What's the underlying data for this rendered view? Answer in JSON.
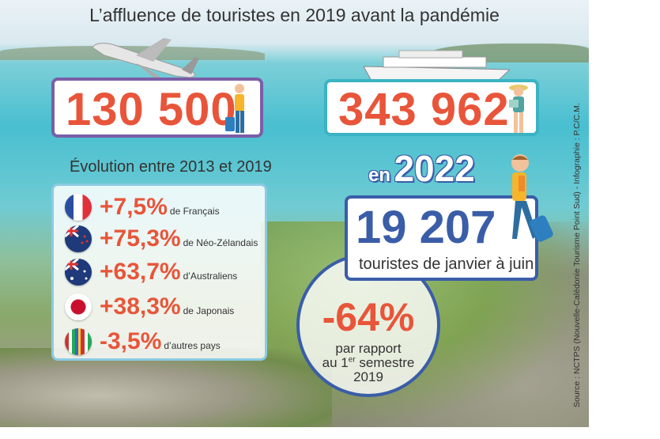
{
  "title": "L’affluence de touristes en 2019 avant la pandémie",
  "air_visitors": "130 500",
  "cruise_visitors": "343 962",
  "evolution": {
    "heading": "Évolution entre 2013 et 2019",
    "items": [
      {
        "flag": "france-flag",
        "value": "+7,5%",
        "label": "de Français"
      },
      {
        "flag": "new-zealand-flag",
        "value": "+75,3%",
        "label": "de Néo-Zélandais"
      },
      {
        "flag": "australia-flag",
        "value": "+63,7%",
        "label": "d’Australiens"
      },
      {
        "flag": "japan-flag",
        "value": "+38,3%",
        "label": "de Japonais"
      },
      {
        "flag": "world-flags",
        "value": "-3,5%",
        "label": "d’autres pays"
      }
    ]
  },
  "y2022": {
    "prefix": "en",
    "year": "2022",
    "count": "19 207",
    "caption": "touristes de janvier à juin"
  },
  "change": {
    "value": "-64%",
    "line1": "par rapport",
    "line2a": "au 1",
    "line2sup": "er",
    "line2b": " semestre",
    "line3": "2019"
  },
  "source": "Source : NCTPS (Nouvelle-Calédonie Tourisme Point Sud) - Infographie : P.C/C.M.",
  "colors": {
    "orange": "#e8553a",
    "blue": "#3a5da8",
    "purple": "#7b5ea7",
    "teal": "#3bb3c3"
  }
}
